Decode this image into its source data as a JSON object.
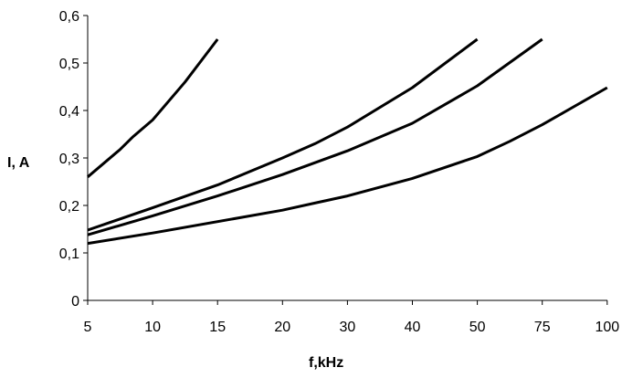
{
  "chart_data": {
    "type": "line",
    "xlabel": "f,kHz",
    "ylabel": "I, A",
    "x_categories": [
      "5",
      "10",
      "15",
      "20",
      "30",
      "40",
      "50",
      "75",
      "100"
    ],
    "y_ticks": [
      "0",
      "0,1",
      "0,2",
      "0,3",
      "0,4",
      "0,5",
      "0,6"
    ],
    "ylim": [
      0,
      0.6
    ],
    "grid": false,
    "legend": "none",
    "line_color": "#000000",
    "series": [
      {
        "points": [
          {
            "x": 5,
            "y": 0.26
          },
          {
            "x": 7.5,
            "y": 0.318
          },
          {
            "x": 8.5,
            "y": 0.345
          },
          {
            "x": 10,
            "y": 0.38
          },
          {
            "x": 12.5,
            "y": 0.46
          },
          {
            "x": 15,
            "y": 0.55
          }
        ]
      },
      {
        "points": [
          {
            "x": 5,
            "y": 0.148
          },
          {
            "x": 10,
            "y": 0.195
          },
          {
            "x": 15,
            "y": 0.243
          },
          {
            "x": 20,
            "y": 0.3
          },
          {
            "x": 25,
            "y": 0.33
          },
          {
            "x": 30,
            "y": 0.365
          },
          {
            "x": 40,
            "y": 0.448
          },
          {
            "x": 50,
            "y": 0.55
          }
        ]
      },
      {
        "points": [
          {
            "x": 5,
            "y": 0.138
          },
          {
            "x": 10,
            "y": 0.178
          },
          {
            "x": 15,
            "y": 0.22
          },
          {
            "x": 20,
            "y": 0.265
          },
          {
            "x": 30,
            "y": 0.315
          },
          {
            "x": 40,
            "y": 0.373
          },
          {
            "x": 50,
            "y": 0.452
          },
          {
            "x": 75,
            "y": 0.55
          }
        ]
      },
      {
        "points": [
          {
            "x": 5,
            "y": 0.12
          },
          {
            "x": 10,
            "y": 0.142
          },
          {
            "x": 20,
            "y": 0.19
          },
          {
            "x": 25,
            "y": 0.205
          },
          {
            "x": 30,
            "y": 0.22
          },
          {
            "x": 40,
            "y": 0.257
          },
          {
            "x": 50,
            "y": 0.303
          },
          {
            "x": 62.5,
            "y": 0.335
          },
          {
            "x": 75,
            "y": 0.37
          },
          {
            "x": 100,
            "y": 0.448
          }
        ]
      }
    ]
  }
}
